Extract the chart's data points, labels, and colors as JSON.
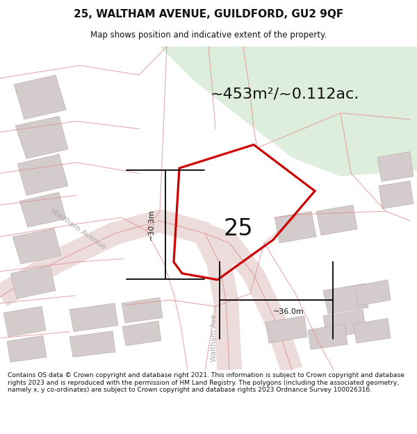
{
  "title": "25, WALTHAM AVENUE, GUILDFORD, GU2 9QF",
  "subtitle": "Map shows position and indicative extent of the property.",
  "area_text": "~453m²/~0.112ac.",
  "label_25": "25",
  "dim_vertical": "~30.3m",
  "dim_horizontal": "~36.0m",
  "footer_text": "Contains OS data © Crown copyright and database right 2021. This information is subject to Crown copyright and database rights 2023 and is reproduced with the permission of HM Land Registry. The polygons (including the associated geometry, namely x, y co-ordinates) are subject to Crown copyright and database rights 2023 Ordnance Survey 100026316.",
  "bg_map_color": "#f5efef",
  "bg_green_color": "#ddeedd",
  "road_color": "#ecdcdc",
  "building_color": "#d4cccc",
  "boundary_color": "#e09090",
  "highlight_color": "#cc0000",
  "text_color": "#111111",
  "footer_bg": "#ffffff",
  "title_bg": "#ffffff"
}
